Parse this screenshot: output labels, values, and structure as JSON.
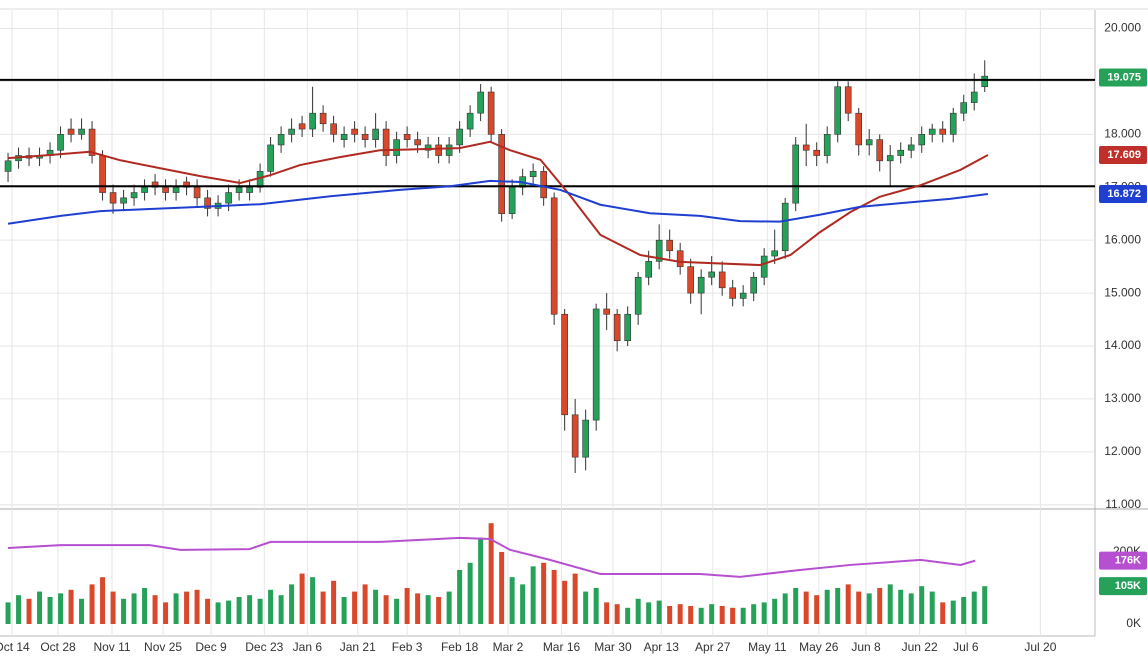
{
  "chart_data": [
    {
      "type": "candlestick",
      "xlim": [
        -0.29,
        103.5
      ],
      "xticks": [
        {
          "value": 0.38,
          "label": "Oct 14"
        },
        {
          "value": 4.76,
          "label": "Oct 28"
        },
        {
          "value": 9.9,
          "label": "Nov 11"
        },
        {
          "value": 14.76,
          "label": "Nov 25"
        },
        {
          "value": 19.33,
          "label": "Dec 9"
        },
        {
          "value": 24.4,
          "label": "Dec 23"
        },
        {
          "value": 28.5,
          "label": "Jan 6"
        },
        {
          "value": 33.3,
          "label": "Jan 21"
        },
        {
          "value": 38.0,
          "label": "Feb 3"
        },
        {
          "value": 43.0,
          "label": "Feb 18"
        },
        {
          "value": 47.6,
          "label": "Mar 2"
        },
        {
          "value": 52.7,
          "label": "Mar 16"
        },
        {
          "value": 57.6,
          "label": "Mar 30"
        },
        {
          "value": 62.2,
          "label": "Apr 13"
        },
        {
          "value": 67.1,
          "label": "Apr 27"
        },
        {
          "value": 72.3,
          "label": "May 11"
        },
        {
          "value": 77.2,
          "label": "May 26"
        },
        {
          "value": 81.7,
          "label": "Jun 8"
        },
        {
          "value": 86.8,
          "label": "Jun 22"
        },
        {
          "value": 91.2,
          "label": "Jul 6"
        },
        {
          "value": 98.3,
          "label": "Jul 20"
        }
      ],
      "ylim": [
        10.92,
        20.35
      ],
      "yticks": [
        {
          "value": 11,
          "label": "11.000"
        },
        {
          "value": 12,
          "label": "12.000"
        },
        {
          "value": 13,
          "label": "13.000"
        },
        {
          "value": 14,
          "label": "14.000"
        },
        {
          "value": 15,
          "label": "15.000"
        },
        {
          "value": 16,
          "label": "16.000"
        },
        {
          "value": 17,
          "label": "17.000"
        },
        {
          "value": 18,
          "label": "18.000"
        },
        {
          "value": 19,
          "label": "19.000"
        },
        {
          "value": 20,
          "label": "20.000"
        }
      ],
      "grid": true,
      "up_color": "#26a15a",
      "down_color": "#d9482b",
      "open": [
        17.3,
        17.5,
        17.6,
        17.55,
        17.6,
        17.7,
        18.1,
        18.0,
        18.1,
        17.6,
        16.9,
        16.7,
        16.8,
        16.9,
        17.1,
        17.0,
        16.9,
        17.1,
        17.0,
        16.8,
        16.6,
        16.7,
        16.9,
        16.9,
        17.0,
        17.3,
        17.8,
        18.0,
        18.2,
        18.1,
        18.4,
        18.2,
        17.9,
        18.1,
        18.0,
        17.9,
        18.1,
        17.6,
        18.0,
        17.9,
        17.7,
        17.8,
        17.6,
        17.8,
        18.1,
        18.4,
        18.8,
        18.0,
        16.5,
        17.0,
        17.2,
        17.3,
        16.8,
        14.6,
        12.7,
        11.9,
        12.6,
        14.7,
        14.6,
        14.1,
        14.6,
        15.3,
        15.6,
        16.0,
        15.8,
        15.5,
        15.0,
        15.3,
        15.4,
        15.1,
        14.9,
        15.0,
        15.3,
        15.7,
        15.8,
        16.7,
        17.8,
        17.7,
        17.6,
        18.0,
        18.9,
        18.4,
        17.8,
        17.9,
        17.5,
        17.6,
        17.7,
        17.8,
        18.0,
        18.1,
        18.0,
        18.4,
        18.6,
        18.9
      ],
      "high": [
        17.65,
        17.75,
        17.75,
        17.75,
        17.85,
        18.15,
        18.3,
        18.3,
        18.25,
        17.7,
        17.05,
        16.95,
        17.05,
        17.15,
        17.25,
        17.15,
        17.15,
        17.2,
        17.15,
        16.95,
        16.85,
        17.05,
        17.15,
        17.15,
        17.45,
        17.95,
        18.15,
        18.3,
        18.35,
        18.9,
        18.55,
        18.35,
        18.15,
        18.25,
        18.15,
        18.4,
        18.25,
        18.05,
        18.15,
        18.05,
        17.95,
        17.95,
        17.95,
        18.25,
        18.55,
        18.95,
        18.9,
        18.1,
        17.15,
        17.35,
        17.45,
        17.4,
        16.9,
        14.7,
        13.0,
        12.8,
        14.8,
        15.0,
        14.7,
        14.75,
        15.4,
        15.8,
        16.3,
        16.2,
        15.95,
        15.65,
        15.45,
        15.7,
        15.6,
        15.25,
        15.15,
        15.4,
        15.85,
        16.2,
        16.8,
        17.95,
        18.2,
        17.85,
        18.15,
        19.0,
        19.0,
        18.5,
        18.1,
        18.0,
        17.8,
        17.85,
        17.95,
        18.15,
        18.2,
        18.25,
        18.5,
        18.75,
        19.15,
        19.4
      ],
      "low": [
        17.1,
        17.35,
        17.4,
        17.4,
        17.45,
        17.55,
        17.85,
        17.9,
        17.45,
        16.75,
        16.5,
        16.55,
        16.65,
        16.75,
        16.85,
        16.75,
        16.75,
        16.85,
        16.65,
        16.45,
        16.45,
        16.55,
        16.75,
        16.75,
        16.9,
        17.2,
        17.65,
        17.85,
        17.95,
        17.95,
        18.05,
        17.85,
        17.75,
        17.85,
        17.75,
        17.75,
        17.4,
        17.45,
        17.75,
        17.65,
        17.55,
        17.45,
        17.45,
        17.65,
        17.95,
        18.25,
        17.85,
        16.35,
        16.4,
        16.85,
        17.05,
        16.65,
        14.4,
        12.4,
        11.6,
        11.65,
        12.4,
        14.3,
        13.9,
        14.0,
        14.4,
        15.15,
        15.45,
        15.65,
        15.35,
        14.8,
        14.6,
        15.15,
        14.95,
        14.75,
        14.75,
        14.85,
        15.15,
        15.55,
        15.65,
        16.55,
        17.4,
        17.4,
        17.45,
        17.85,
        18.25,
        17.6,
        17.6,
        17.3,
        17.0,
        17.45,
        17.55,
        17.65,
        17.85,
        17.85,
        17.85,
        18.25,
        18.45,
        18.8
      ],
      "close": [
        17.5,
        17.6,
        17.55,
        17.6,
        17.7,
        18.0,
        18.0,
        18.1,
        17.6,
        16.9,
        16.7,
        16.8,
        16.9,
        17.0,
        17.0,
        16.9,
        17.0,
        17.0,
        16.8,
        16.6,
        16.7,
        16.9,
        17.0,
        17.0,
        17.3,
        17.8,
        18.0,
        18.1,
        18.1,
        18.4,
        18.2,
        18.0,
        18.0,
        18.0,
        17.9,
        18.1,
        17.6,
        17.9,
        17.9,
        17.8,
        17.8,
        17.6,
        17.8,
        18.1,
        18.4,
        18.8,
        18.0,
        16.5,
        17.0,
        17.2,
        17.3,
        16.8,
        14.6,
        12.7,
        11.9,
        12.6,
        14.7,
        14.6,
        14.1,
        14.6,
        15.3,
        15.6,
        16.0,
        15.8,
        15.5,
        15.0,
        15.3,
        15.4,
        15.1,
        14.9,
        15.0,
        15.3,
        15.7,
        15.8,
        16.7,
        17.8,
        17.7,
        17.6,
        18.0,
        18.9,
        18.4,
        17.8,
        17.9,
        17.5,
        17.6,
        17.7,
        17.8,
        18.0,
        18.1,
        18.0,
        18.4,
        18.6,
        18.8,
        19.1
      ],
      "lines": [
        {
          "color": "#b02a22",
          "x": [
            0,
            4,
            7.8,
            10.7,
            14.5,
            18.3,
            22.1,
            25,
            27.8,
            31.6,
            35.4,
            43,
            45.9,
            47.8,
            50.7,
            53.5,
            56.4,
            60.2,
            64,
            71.6,
            74.5,
            77.3,
            80.2,
            83,
            86.9,
            90.7,
            93.3
          ],
          "values": [
            17.55,
            17.61,
            17.67,
            17.51,
            17.36,
            17.21,
            17.08,
            17.23,
            17.42,
            17.57,
            17.7,
            17.74,
            17.86,
            17.7,
            17.52,
            16.85,
            16.1,
            15.72,
            15.59,
            15.53,
            15.72,
            16.15,
            16.53,
            16.82,
            17.04,
            17.33,
            17.609
          ]
        },
        {
          "color": "#1f3fd1",
          "x": [
            0,
            5,
            8.8,
            13.5,
            18.3,
            24,
            30.7,
            37.3,
            42.1,
            45.9,
            48.8,
            52.6,
            56.4,
            61.1,
            65.9,
            69.7,
            73.5,
            77.3,
            81.1,
            85,
            89.7,
            93.3
          ],
          "values": [
            16.31,
            16.46,
            16.55,
            16.59,
            16.63,
            16.68,
            16.83,
            16.95,
            17.02,
            17.12,
            17.1,
            16.95,
            16.67,
            16.51,
            16.46,
            16.36,
            16.35,
            16.48,
            16.63,
            16.7,
            16.78,
            16.872
          ]
        }
      ],
      "levels": [
        19.03,
        17.02
      ],
      "tags": [
        {
          "value": 19.075,
          "color": "#26a15a"
        },
        {
          "value": 17.609,
          "color": "#c0302a"
        },
        {
          "value": 16.872,
          "color": "#1f3fd1"
        }
      ]
    },
    {
      "type": "bar",
      "ylim": [
        0,
        311
      ],
      "yticks": [
        {
          "value": 0,
          "label": "0K"
        },
        {
          "value": 200,
          "label": "200K"
        }
      ],
      "values": [
        60,
        80,
        70,
        90,
        75,
        85,
        95,
        70,
        110,
        130,
        90,
        70,
        85,
        100,
        80,
        60,
        85,
        90,
        95,
        70,
        60,
        65,
        75,
        80,
        70,
        95,
        80,
        110,
        140,
        130,
        90,
        120,
        75,
        90,
        110,
        95,
        80,
        70,
        100,
        85,
        80,
        75,
        90,
        150,
        170,
        240,
        280,
        200,
        130,
        110,
        160,
        170,
        150,
        120,
        140,
        90,
        100,
        60,
        55,
        45,
        70,
        60,
        65,
        50,
        55,
        50,
        45,
        55,
        50,
        45,
        45,
        55,
        60,
        70,
        85,
        100,
        90,
        80,
        95,
        100,
        110,
        90,
        85,
        100,
        110,
        95,
        85,
        105,
        90,
        60,
        65,
        75,
        90,
        105
      ],
      "lines": [
        {
          "color": "#b64fd0",
          "x": [
            0,
            5,
            13.5,
            16.4,
            23,
            25,
            35.4,
            43,
            45.9,
            47.8,
            51.6,
            56.4,
            65.9,
            69.7,
            75.4,
            80.2,
            86.9,
            90.7,
            92.1
          ],
          "values": [
            211,
            219,
            219,
            206,
            208,
            228,
            228,
            239,
            236,
            206,
            178,
            139,
            139,
            131,
            150,
            164,
            178,
            164,
            176
          ]
        }
      ],
      "tags": [
        {
          "value": 176,
          "label": "176K",
          "color": "#b64fd0"
        },
        {
          "value": 105,
          "label": "105K",
          "color": "#26a15a"
        }
      ]
    }
  ]
}
